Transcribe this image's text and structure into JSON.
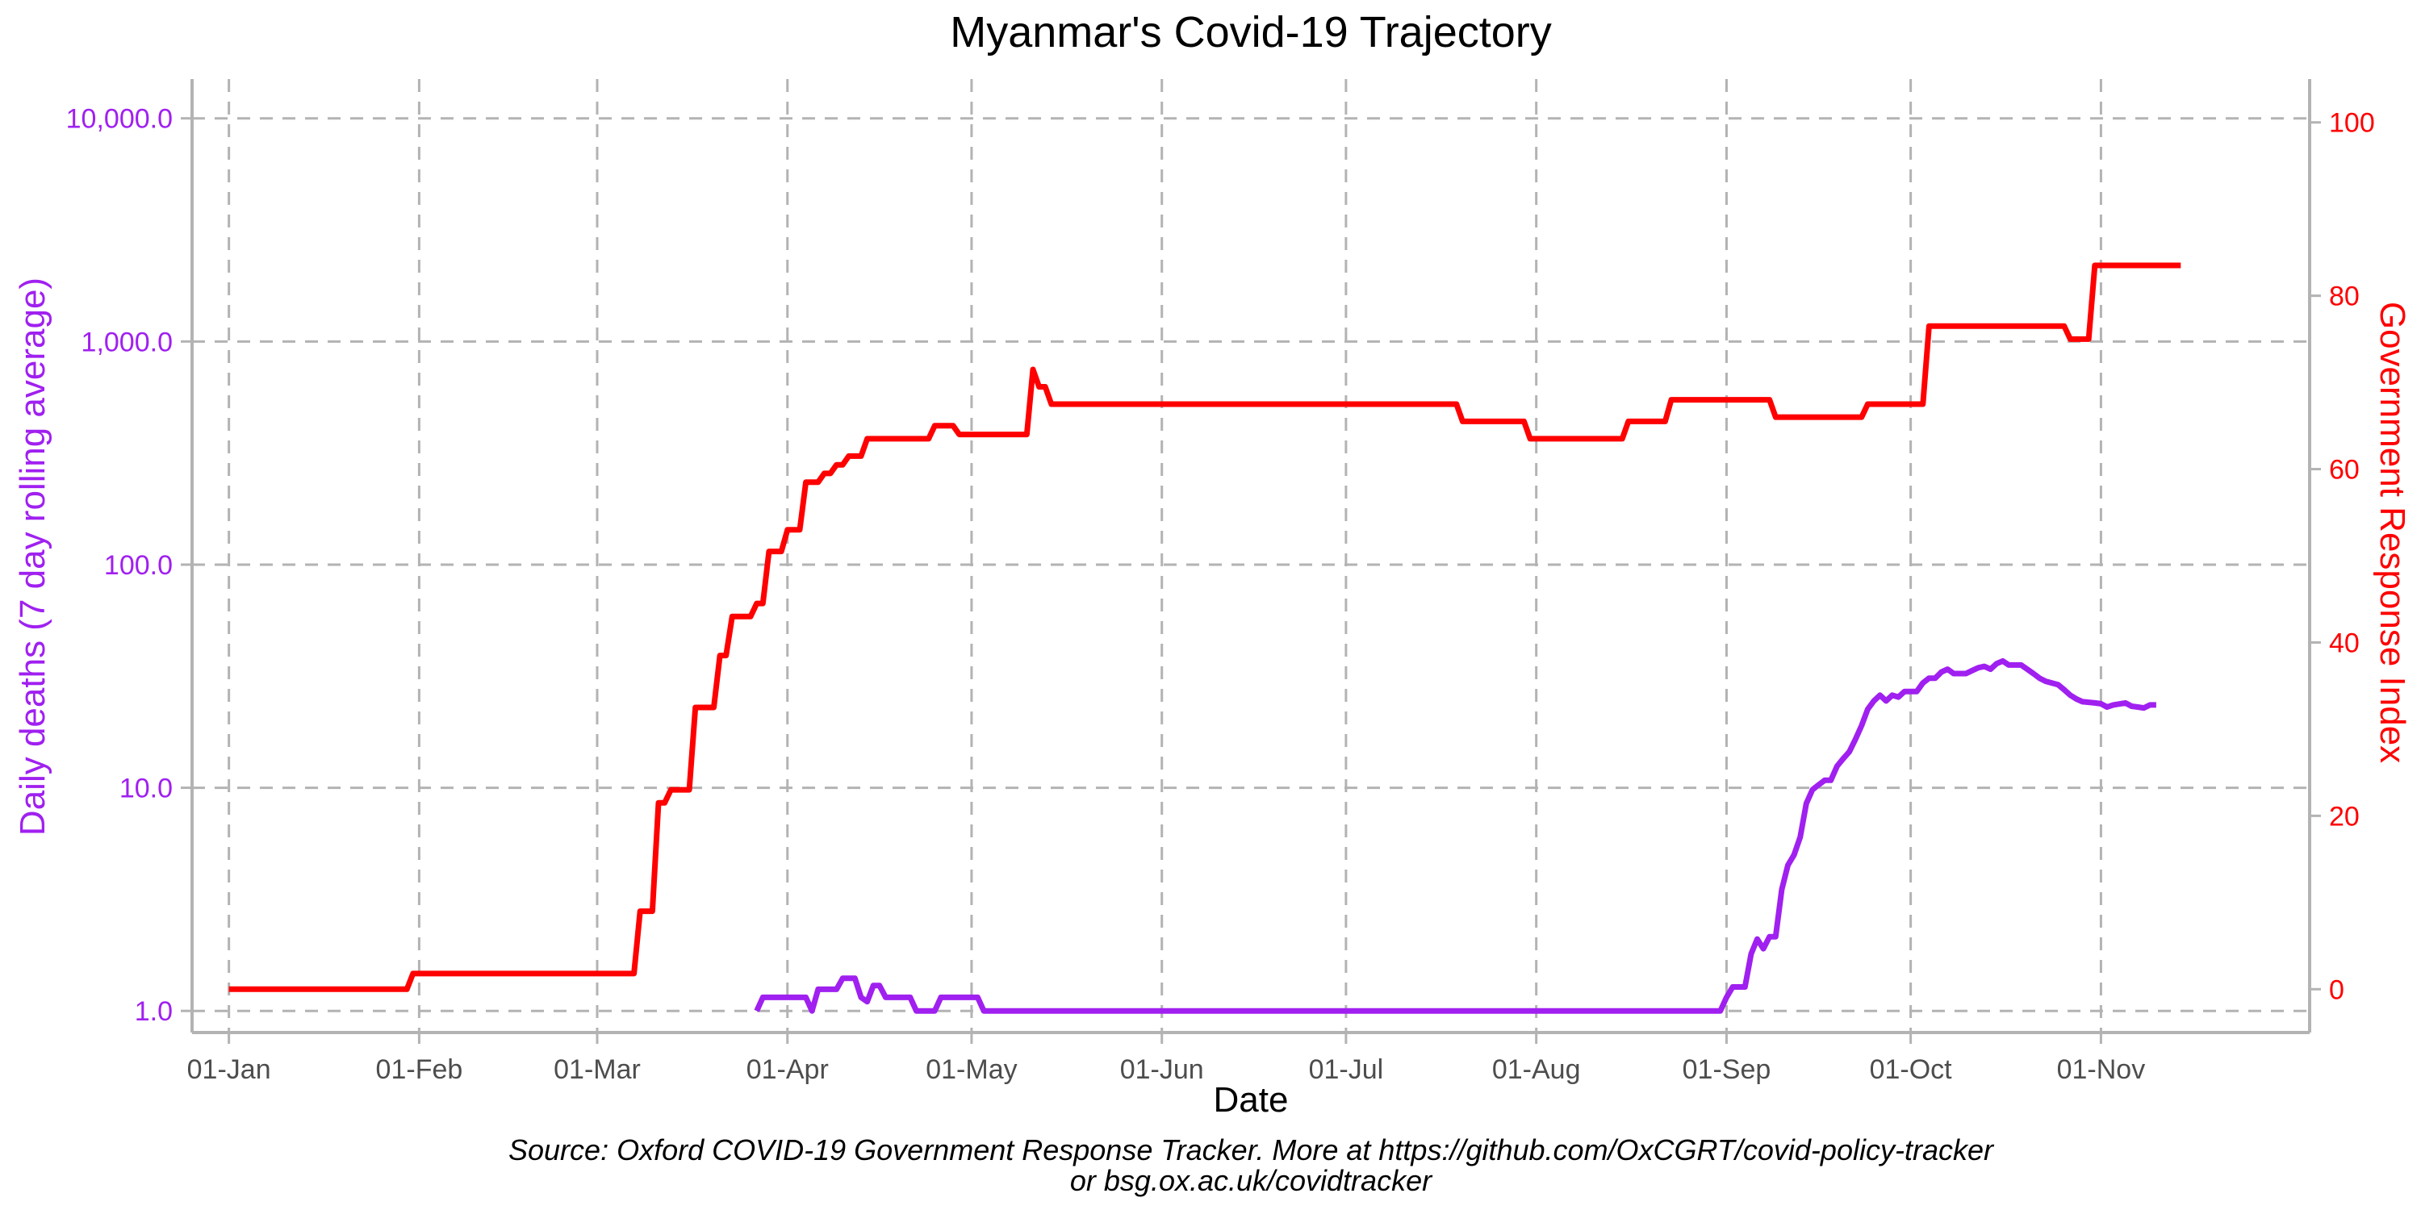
{
  "chart_data": {
    "type": "line",
    "title": "Myanmar's Covid-19 Trajectory",
    "xlabel": "Date",
    "ylabel_left": "Daily deaths (7 day rolling average)",
    "ylabel_right": "Government Response Index",
    "x_range": [
      "2019-12-26",
      "2020-12-05"
    ],
    "x_ticks": [
      {
        "date": "2020-01-01",
        "label": "01-Jan"
      },
      {
        "date": "2020-02-01",
        "label": "01-Feb"
      },
      {
        "date": "2020-03-01",
        "label": "01-Mar"
      },
      {
        "date": "2020-04-01",
        "label": "01-Apr"
      },
      {
        "date": "2020-05-01",
        "label": "01-May"
      },
      {
        "date": "2020-06-01",
        "label": "01-Jun"
      },
      {
        "date": "2020-07-01",
        "label": "01-Jul"
      },
      {
        "date": "2020-08-01",
        "label": "01-Aug"
      },
      {
        "date": "2020-09-01",
        "label": "01-Sep"
      },
      {
        "date": "2020-10-01",
        "label": "01-Oct"
      },
      {
        "date": "2020-11-01",
        "label": "01-Nov"
      }
    ],
    "y_left": {
      "scale": "log10",
      "range": [
        0.8,
        15000
      ],
      "ticks": [
        {
          "value": 1,
          "label": "1.0"
        },
        {
          "value": 10,
          "label": "10.0"
        },
        {
          "value": 100,
          "label": "100.0"
        },
        {
          "value": 1000,
          "label": "1,000.0"
        },
        {
          "value": 10000,
          "label": "10,000.0"
        }
      ]
    },
    "y_right": {
      "scale": "linear",
      "range": [
        -5,
        105
      ],
      "ticks": [
        {
          "value": 0,
          "label": "0"
        },
        {
          "value": 20,
          "label": "20"
        },
        {
          "value": 40,
          "label": "40"
        },
        {
          "value": 60,
          "label": "60"
        },
        {
          "value": 80,
          "label": "80"
        },
        {
          "value": 100,
          "label": "100"
        }
      ]
    },
    "grid": true,
    "series": [
      {
        "axis": "left",
        "color": "#a020f0",
        "points": [
          [
            "2020-03-27",
            1.0
          ],
          [
            "2020-03-28",
            1.15
          ],
          [
            "2020-04-04",
            1.15
          ],
          [
            "2020-04-05",
            1.0
          ],
          [
            "2020-04-06",
            1.25
          ],
          [
            "2020-04-09",
            1.25
          ],
          [
            "2020-04-10",
            1.4
          ],
          [
            "2020-04-12",
            1.4
          ],
          [
            "2020-04-13",
            1.15
          ],
          [
            "2020-04-14",
            1.1
          ],
          [
            "2020-04-15",
            1.3
          ],
          [
            "2020-04-16",
            1.3
          ],
          [
            "2020-04-17",
            1.15
          ],
          [
            "2020-04-21",
            1.15
          ],
          [
            "2020-04-22",
            1.0
          ],
          [
            "2020-04-25",
            1.0
          ],
          [
            "2020-04-26",
            1.15
          ],
          [
            "2020-05-02",
            1.15
          ],
          [
            "2020-05-03",
            1.0
          ],
          [
            "2020-08-31",
            1.0
          ],
          [
            "2020-09-01",
            1.15
          ],
          [
            "2020-09-02",
            1.28
          ],
          [
            "2020-09-04",
            1.28
          ],
          [
            "2020-09-05",
            1.8
          ],
          [
            "2020-09-06",
            2.1
          ],
          [
            "2020-09-07",
            1.9
          ],
          [
            "2020-09-08",
            2.15
          ],
          [
            "2020-09-09",
            2.15
          ],
          [
            "2020-09-10",
            3.5
          ],
          [
            "2020-09-11",
            4.5
          ],
          [
            "2020-09-12",
            5.0
          ],
          [
            "2020-09-13",
            6.0
          ],
          [
            "2020-09-14",
            8.5
          ],
          [
            "2020-09-15",
            9.8
          ],
          [
            "2020-09-16",
            10.3
          ],
          [
            "2020-09-17",
            10.8
          ],
          [
            "2020-09-18",
            10.8
          ],
          [
            "2020-09-19",
            12.5
          ],
          [
            "2020-09-20",
            13.5
          ],
          [
            "2020-09-21",
            14.5
          ],
          [
            "2020-09-22",
            16.5
          ],
          [
            "2020-09-23",
            19.0
          ],
          [
            "2020-09-24",
            22.5
          ],
          [
            "2020-09-25",
            24.5
          ],
          [
            "2020-09-26",
            26.0
          ],
          [
            "2020-09-27",
            24.5
          ],
          [
            "2020-09-28",
            26.0
          ],
          [
            "2020-09-29",
            25.5
          ],
          [
            "2020-09-30",
            27.0
          ],
          [
            "2020-10-02",
            27.0
          ],
          [
            "2020-10-03",
            29.5
          ],
          [
            "2020-10-04",
            31.0
          ],
          [
            "2020-10-05",
            31.0
          ],
          [
            "2020-10-06",
            33.0
          ],
          [
            "2020-10-07",
            34.0
          ],
          [
            "2020-10-08",
            32.5
          ],
          [
            "2020-10-10",
            32.5
          ],
          [
            "2020-10-11",
            33.5
          ],
          [
            "2020-10-12",
            34.5
          ],
          [
            "2020-10-13",
            35.0
          ],
          [
            "2020-10-14",
            34.0
          ],
          [
            "2020-10-15",
            36.0
          ],
          [
            "2020-10-16",
            37.0
          ],
          [
            "2020-10-17",
            35.5
          ],
          [
            "2020-10-19",
            35.5
          ],
          [
            "2020-10-20",
            34.0
          ],
          [
            "2020-10-21",
            32.5
          ],
          [
            "2020-10-22",
            31.0
          ],
          [
            "2020-10-23",
            30.0
          ],
          [
            "2020-10-25",
            29.0
          ],
          [
            "2020-10-26",
            27.5
          ],
          [
            "2020-10-27",
            26.0
          ],
          [
            "2020-10-28",
            25.0
          ],
          [
            "2020-10-29",
            24.3
          ],
          [
            "2020-10-31",
            24.0
          ],
          [
            "2020-11-01",
            23.8
          ],
          [
            "2020-11-02",
            23.0
          ],
          [
            "2020-11-03",
            23.5
          ],
          [
            "2020-11-05",
            24.0
          ],
          [
            "2020-11-06",
            23.2
          ],
          [
            "2020-11-07",
            23.0
          ],
          [
            "2020-11-08",
            22.8
          ],
          [
            "2020-11-09",
            23.5
          ],
          [
            "2020-11-10",
            23.5
          ]
        ]
      },
      {
        "axis": "right",
        "color": "#ff0000",
        "points": [
          [
            "2020-01-01",
            0
          ],
          [
            "2020-01-30",
            0
          ],
          [
            "2020-01-31",
            1.8
          ],
          [
            "2020-03-07",
            1.8
          ],
          [
            "2020-03-08",
            9
          ],
          [
            "2020-03-10",
            9
          ],
          [
            "2020-03-11",
            21.5
          ],
          [
            "2020-03-12",
            21.5
          ],
          [
            "2020-03-13",
            23
          ],
          [
            "2020-03-16",
            23
          ],
          [
            "2020-03-17",
            32.5
          ],
          [
            "2020-03-20",
            32.5
          ],
          [
            "2020-03-21",
            38.5
          ],
          [
            "2020-03-22",
            38.5
          ],
          [
            "2020-03-23",
            43
          ],
          [
            "2020-03-26",
            43
          ],
          [
            "2020-03-27",
            44.5
          ],
          [
            "2020-03-28",
            44.5
          ],
          [
            "2020-03-29",
            50.5
          ],
          [
            "2020-03-31",
            50.5
          ],
          [
            "2020-04-01",
            53
          ],
          [
            "2020-04-03",
            53
          ],
          [
            "2020-04-04",
            58.5
          ],
          [
            "2020-04-06",
            58.5
          ],
          [
            "2020-04-07",
            59.5
          ],
          [
            "2020-04-08",
            59.5
          ],
          [
            "2020-04-09",
            60.5
          ],
          [
            "2020-04-10",
            60.5
          ],
          [
            "2020-04-11",
            61.5
          ],
          [
            "2020-04-13",
            61.5
          ],
          [
            "2020-04-14",
            63.5
          ],
          [
            "2020-04-24",
            63.5
          ],
          [
            "2020-04-25",
            65
          ],
          [
            "2020-04-28",
            65
          ],
          [
            "2020-04-29",
            64
          ],
          [
            "2020-05-10",
            64
          ],
          [
            "2020-05-11",
            71.5
          ],
          [
            "2020-05-12",
            69.5
          ],
          [
            "2020-05-13",
            69.5
          ],
          [
            "2020-05-14",
            67.5
          ],
          [
            "2020-07-19",
            67.5
          ],
          [
            "2020-07-20",
            65.5
          ],
          [
            "2020-07-30",
            65.5
          ],
          [
            "2020-07-31",
            63.5
          ],
          [
            "2020-08-15",
            63.5
          ],
          [
            "2020-08-16",
            65.5
          ],
          [
            "2020-08-22",
            65.5
          ],
          [
            "2020-08-23",
            68
          ],
          [
            "2020-09-08",
            68
          ],
          [
            "2020-09-09",
            66
          ],
          [
            "2020-09-23",
            66
          ],
          [
            "2020-09-24",
            67.5
          ],
          [
            "2020-10-03",
            67.5
          ],
          [
            "2020-10-04",
            76.5
          ],
          [
            "2020-10-26",
            76.5
          ],
          [
            "2020-10-27",
            75
          ],
          [
            "2020-10-30",
            75
          ],
          [
            "2020-10-31",
            83.5
          ],
          [
            "2020-11-14",
            83.5
          ]
        ]
      }
    ]
  },
  "caption": {
    "line1": "Source: Oxford COVID-19 Government Response Tracker. More at https://github.com/OxCGRT/covid-policy-tracker",
    "line2": "or bsg.ox.ac.uk/covidtracker"
  },
  "colors": {
    "deaths": "#a020f0",
    "response_index": "#ff0000"
  }
}
